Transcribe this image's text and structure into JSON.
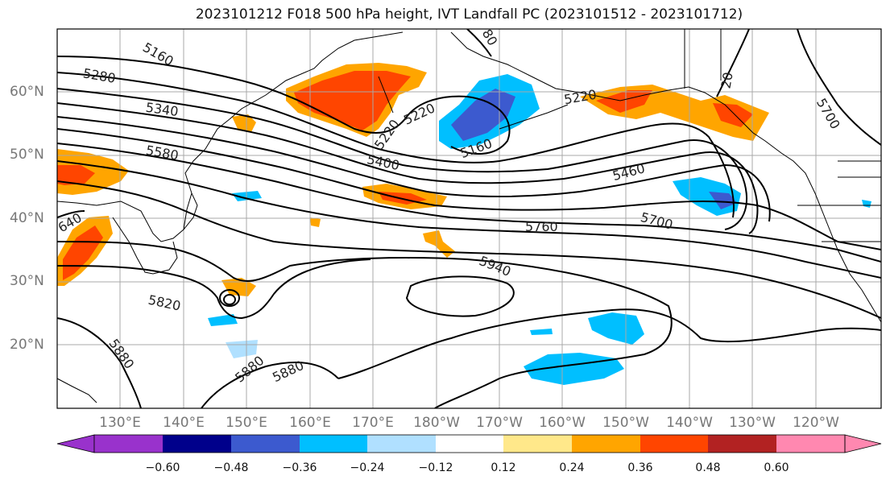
{
  "title": "2023101212 F018 500 hPa height, IVT Landfall PC (2023101512 - 2023101712)",
  "axes": {
    "lat_labels": [
      "60°N",
      "50°N",
      "40°N",
      "30°N",
      "20°N"
    ],
    "lon_labels": [
      "130°E",
      "140°E",
      "150°E",
      "160°E",
      "170°E",
      "180°W",
      "170°W",
      "160°W",
      "150°W",
      "140°W",
      "130°W",
      "120°W"
    ]
  },
  "contour_labels": [
    "5160",
    "5280",
    "5340",
    "5580",
    "5220",
    "5220",
    "5160",
    "5400",
    "5460",
    "5220",
    "5700",
    "5760",
    "5700",
    "5940",
    "5820",
    "5880",
    "5880",
    "5880",
    "640",
    "80",
    "20"
  ],
  "colorbar": {
    "ticks": [
      "−0.60",
      "−0.48",
      "−0.36",
      "−0.24",
      "−0.12",
      "0.12",
      "0.24",
      "0.36",
      "0.48",
      "0.60"
    ],
    "colors": [
      "#9932cc",
      "#00008b",
      "#3c5acf",
      "#00bfff",
      "#b0e0ff",
      "#ffffff",
      "#ffe88a",
      "#ffa500",
      "#ff4500",
      "#b22222",
      "#ff88b0"
    ],
    "extend": "both"
  },
  "fill_colors": {
    "orange_light": "#ffe88a",
    "orange": "#ffa500",
    "red_orange": "#ff4500",
    "blue_light": "#b0e0ff",
    "blue": "#00bfff",
    "blue_dark": "#3c5acf"
  }
}
